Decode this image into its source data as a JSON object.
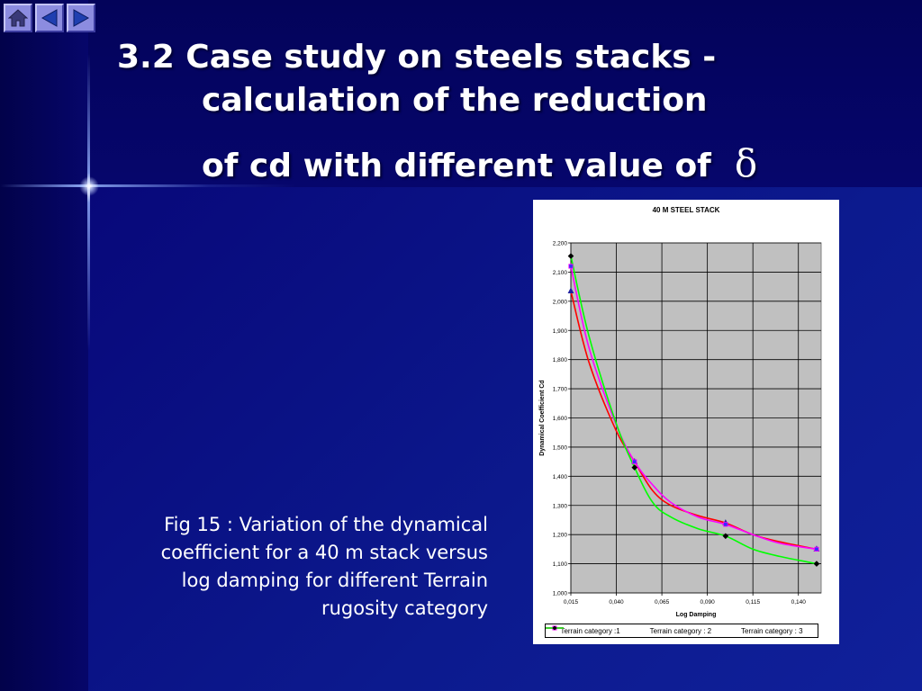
{
  "nav": {
    "home_icon": "home-icon",
    "prev_icon": "triangle-left-icon",
    "next_icon": "triangle-right-icon"
  },
  "title": {
    "line1": "3.2 Case study on steels stacks -",
    "line2": "calculation of the reduction",
    "line3": "of cd with different value of",
    "symbol": "δ"
  },
  "caption": "Fig 15 : Variation of the dynamical coefficient for a 40 m stack versus log damping for different Terrain rugosity category",
  "colors": {
    "background": "#0a0a7a",
    "plot_area": "#c0c0c0",
    "series1": "#ff0000",
    "series2": "#ff00ff",
    "series3": "#00ff00"
  },
  "chart_data": {
    "type": "line",
    "title": "40 M STEEL STACK",
    "xlabel": "Log Damping",
    "ylabel": "Dynamical Coefficient Cd",
    "x_ticks": [
      "0,015",
      "0,040",
      "0,065",
      "0,090",
      "0,115",
      "0,140"
    ],
    "y_ticks": [
      "1,000",
      "1,100",
      "1,200",
      "1,300",
      "1,400",
      "1,500",
      "1,600",
      "1,700",
      "1,800",
      "1,900",
      "2,000",
      "2,100",
      "2,200"
    ],
    "xlim": [
      0.015,
      0.15
    ],
    "ylim": [
      1.0,
      2.2
    ],
    "grid": true,
    "legend_position": "bottom",
    "series": [
      {
        "name": "Terrain category :1",
        "color": "#ff0000",
        "marker": "triangle",
        "points": [
          [
            0.015,
            2.035
          ],
          [
            0.05,
            1.45
          ],
          [
            0.1,
            1.24
          ],
          [
            0.15,
            1.15
          ]
        ],
        "curve": [
          [
            0.015,
            2.035
          ],
          [
            0.025,
            1.79
          ],
          [
            0.04,
            1.555
          ],
          [
            0.05,
            1.45
          ],
          [
            0.06,
            1.35
          ],
          [
            0.07,
            1.3
          ],
          [
            0.085,
            1.265
          ],
          [
            0.1,
            1.24
          ],
          [
            0.115,
            1.2
          ],
          [
            0.13,
            1.175
          ],
          [
            0.15,
            1.15
          ]
        ]
      },
      {
        "name": "Terrain category : 2",
        "color": "#ff00ff",
        "marker": "square",
        "points": [
          [
            0.015,
            2.12
          ],
          [
            0.05,
            1.45
          ],
          [
            0.1,
            1.235
          ],
          [
            0.15,
            1.15
          ]
        ],
        "curve": [
          [
            0.015,
            2.12
          ],
          [
            0.025,
            1.84
          ],
          [
            0.04,
            1.575
          ],
          [
            0.05,
            1.45
          ],
          [
            0.06,
            1.37
          ],
          [
            0.07,
            1.31
          ],
          [
            0.085,
            1.26
          ],
          [
            0.1,
            1.235
          ],
          [
            0.115,
            1.2
          ],
          [
            0.13,
            1.17
          ],
          [
            0.15,
            1.15
          ]
        ]
      },
      {
        "name": "Terrain category : 3",
        "color": "#00ff00",
        "marker": "diamond",
        "points": [
          [
            0.015,
            2.155
          ],
          [
            0.05,
            1.43
          ],
          [
            0.1,
            1.195
          ],
          [
            0.15,
            1.1
          ]
        ],
        "curve": [
          [
            0.015,
            2.155
          ],
          [
            0.025,
            1.88
          ],
          [
            0.04,
            1.58
          ],
          [
            0.05,
            1.43
          ],
          [
            0.06,
            1.31
          ],
          [
            0.07,
            1.26
          ],
          [
            0.085,
            1.22
          ],
          [
            0.1,
            1.195
          ],
          [
            0.115,
            1.15
          ],
          [
            0.13,
            1.125
          ],
          [
            0.15,
            1.1
          ]
        ]
      }
    ]
  }
}
